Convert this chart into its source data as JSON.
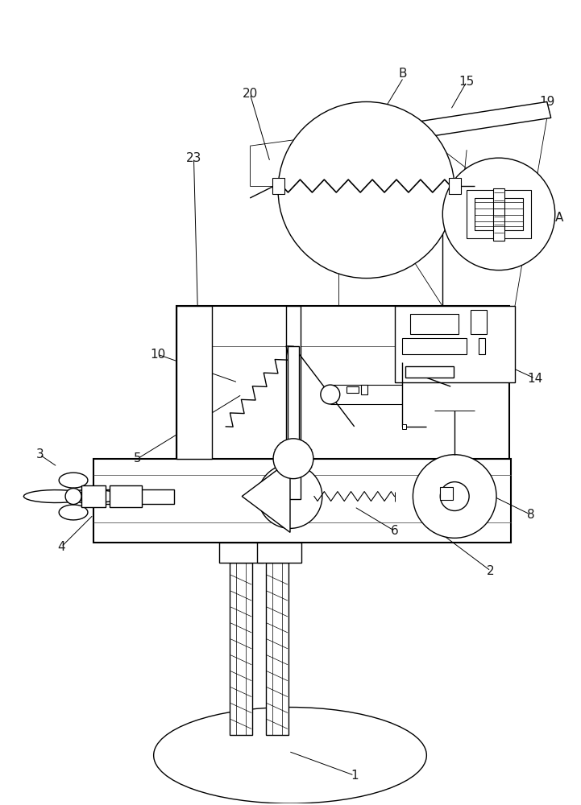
{
  "bg_color": "#ffffff",
  "line_color": "#000000",
  "fig_width": 7.21,
  "fig_height": 10.0,
  "dpi": 100,
  "lw_main": 1.0,
  "lw_thick": 1.5,
  "lw_thin": 0.6,
  "label_fontsize": 11,
  "label_color": "#1a1a1a"
}
